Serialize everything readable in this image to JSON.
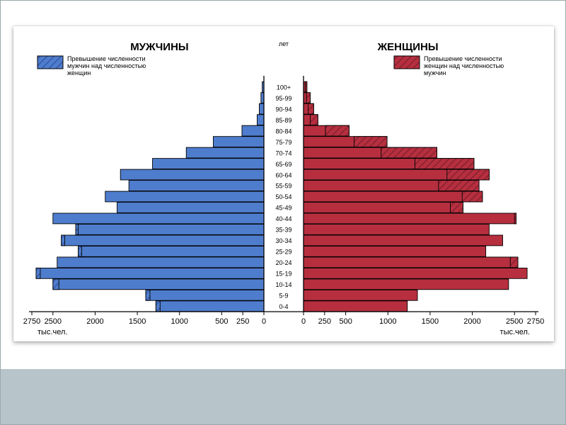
{
  "chart": {
    "type": "population-pyramid",
    "background_color": "#ffffff",
    "card_shadow": "0 2px 6px rgba(0,0,0,0.35)",
    "outer_border_color": "#9aa7ab",
    "bottom_band_color": "#b7c5ca",
    "axis_color": "#000000",
    "bar_stroke": "#000000",
    "bar_stroke_width": 0.9,
    "label_fontsize": 9,
    "title_fontsize": 15,
    "legend_fontsize": 9,
    "axis_fontsize": 11,
    "age_axis_title": "лет",
    "x_unit_left": "тыс.чел.",
    "x_unit_right": "тыс.чел.",
    "left": {
      "title": "МУЖЧИНЫ",
      "legend": "Превышение численности\nмужчин над численностью\nженщин",
      "color": "#4f7dcd",
      "excess_color": "#2f4f9e",
      "hatch": true
    },
    "right": {
      "title": "ЖЕНЩИНЫ",
      "legend": "Превышение численности\nженщин над численностью\nмужчин",
      "color": "#b72f3f",
      "excess_color": "#7a1f2e",
      "hatch": true
    },
    "x_ticks": [
      0,
      250,
      500,
      1000,
      1500,
      2000,
      2500,
      2750
    ],
    "x_max": 2750,
    "age_groups": [
      {
        "label": "100+",
        "m": 20,
        "f": 40,
        "m_ex": 0,
        "f_ex": 20
      },
      {
        "label": "95-99",
        "m": 35,
        "f": 80,
        "m_ex": 0,
        "f_ex": 45
      },
      {
        "label": "90-94",
        "m": 55,
        "f": 120,
        "m_ex": 0,
        "f_ex": 65
      },
      {
        "label": "85-89",
        "m": 80,
        "f": 170,
        "m_ex": 0,
        "f_ex": 90
      },
      {
        "label": "80-84",
        "m": 260,
        "f": 540,
        "m_ex": 0,
        "f_ex": 280
      },
      {
        "label": "75-79",
        "m": 600,
        "f": 990,
        "m_ex": 0,
        "f_ex": 390
      },
      {
        "label": "70-74",
        "m": 920,
        "f": 1580,
        "m_ex": 0,
        "f_ex": 660
      },
      {
        "label": "65-69",
        "m": 1320,
        "f": 2020,
        "m_ex": 0,
        "f_ex": 700
      },
      {
        "label": "60-64",
        "m": 1700,
        "f": 2200,
        "m_ex": 0,
        "f_ex": 500
      },
      {
        "label": "55-59",
        "m": 1600,
        "f": 2080,
        "m_ex": 0,
        "f_ex": 480
      },
      {
        "label": "50-54",
        "m": 1880,
        "f": 2120,
        "m_ex": 0,
        "f_ex": 240
      },
      {
        "label": "45-49",
        "m": 1740,
        "f": 1890,
        "m_ex": 0,
        "f_ex": 150
      },
      {
        "label": "40-44",
        "m": 2500,
        "f": 2520,
        "m_ex": 0,
        "f_ex": 20
      },
      {
        "label": "35-39",
        "m": 2230,
        "f": 2200,
        "m_ex": 30,
        "f_ex": 0
      },
      {
        "label": "30-34",
        "m": 2400,
        "f": 2360,
        "m_ex": 40,
        "f_ex": 0
      },
      {
        "label": "25-29",
        "m": 2200,
        "f": 2160,
        "m_ex": 40,
        "f_ex": 0
      },
      {
        "label": "20-24",
        "m": 2450,
        "f": 2540,
        "m_ex": 0,
        "f_ex": 90
      },
      {
        "label": "15-19",
        "m": 2700,
        "f": 2650,
        "m_ex": 50,
        "f_ex": 0
      },
      {
        "label": "10-14",
        "m": 2500,
        "f": 2430,
        "m_ex": 70,
        "f_ex": 0
      },
      {
        "label": "5-9",
        "m": 1400,
        "f": 1350,
        "m_ex": 50,
        "f_ex": 0
      },
      {
        "label": "0-4",
        "m": 1280,
        "f": 1230,
        "m_ex": 50,
        "f_ex": 0
      }
    ]
  }
}
